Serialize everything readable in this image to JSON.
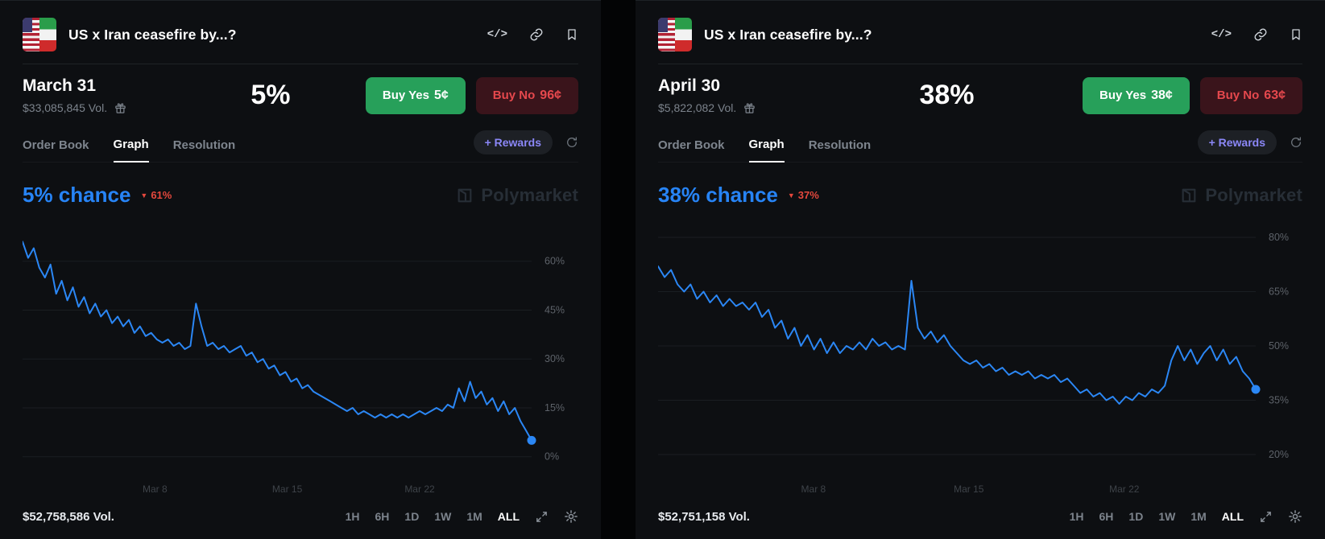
{
  "panels": [
    {
      "title": "US x Iran ceasefire by...?",
      "date": "March 31",
      "volume": "$33,085,845 Vol.",
      "chance": "5%",
      "buy_yes": "Buy Yes",
      "buy_yes_price": "5¢",
      "buy_no": "Buy No",
      "buy_no_price": "96¢",
      "tabs": [
        "Order Book",
        "Graph",
        "Resolution"
      ],
      "rewards": "+ Rewards",
      "chance_label": "5% chance",
      "change": "61%",
      "watermark": "Polymarket",
      "total_volume": "$52,758,586 Vol.",
      "ranges": [
        "1H",
        "6H",
        "1D",
        "1W",
        "1M",
        "ALL"
      ],
      "active_range": "ALL"
    },
    {
      "title": "US x Iran ceasefire by...?",
      "date": "April 30",
      "volume": "$5,822,082 Vol.",
      "chance": "38%",
      "buy_yes": "Buy Yes",
      "buy_yes_price": "38¢",
      "buy_no": "Buy No",
      "buy_no_price": "63¢",
      "tabs": [
        "Order Book",
        "Graph",
        "Resolution"
      ],
      "rewards": "+ Rewards",
      "chance_label": "38% chance",
      "change": "37%",
      "watermark": "Polymarket",
      "total_volume": "$52,751,158 Vol.",
      "ranges": [
        "1H",
        "6H",
        "1D",
        "1W",
        "1M",
        "ALL"
      ],
      "active_range": "ALL"
    }
  ],
  "chart_data": [
    {
      "type": "line",
      "title": "US x Iran ceasefire by March 31 - % chance",
      "color": "#2b87f5",
      "line_color": "#2b87f5",
      "grid": true,
      "legend_position": "none",
      "ylim": [
        -6,
        74
      ],
      "yticks": [
        60,
        45,
        30,
        15,
        0
      ],
      "xticks": [
        {
          "pos": 0.26,
          "label": "Mar 8"
        },
        {
          "pos": 0.52,
          "label": "Mar 15"
        },
        {
          "pos": 0.78,
          "label": "Mar 22"
        }
      ],
      "values": [
        66,
        61,
        64,
        58,
        55,
        59,
        50,
        54,
        48,
        52,
        46,
        49,
        44,
        47,
        43,
        45,
        41,
        43,
        40,
        42,
        38,
        40,
        37,
        38,
        36,
        35,
        36,
        34,
        35,
        33,
        34,
        47,
        40,
        34,
        35,
        33,
        34,
        32,
        33,
        34,
        31,
        32,
        29,
        30,
        27,
        28,
        25,
        26,
        23,
        24,
        21,
        22,
        20,
        19,
        18,
        17,
        16,
        15,
        14,
        15,
        13,
        14,
        13,
        12,
        13,
        12,
        13,
        12,
        13,
        12,
        13,
        14,
        13,
        14,
        15,
        14,
        16,
        15,
        21,
        17,
        23,
        18,
        20,
        16,
        18,
        14,
        17,
        13,
        15,
        11,
        8,
        5
      ]
    },
    {
      "type": "line",
      "title": "US x Iran ceasefire by April 30 - % chance",
      "color": "#2b87f5",
      "line_color": "#2b87f5",
      "grid": true,
      "legend_position": "none",
      "ylim": [
        14,
        86
      ],
      "yticks": [
        80,
        65,
        50,
        35,
        20
      ],
      "xticks": [
        {
          "pos": 0.26,
          "label": "Mar 8"
        },
        {
          "pos": 0.52,
          "label": "Mar 15"
        },
        {
          "pos": 0.78,
          "label": "Mar 22"
        }
      ],
      "values": [
        72,
        69,
        71,
        67,
        65,
        67,
        63,
        65,
        62,
        64,
        61,
        63,
        61,
        62,
        60,
        62,
        58,
        60,
        55,
        57,
        52,
        55,
        50,
        53,
        49,
        52,
        48,
        51,
        48,
        50,
        49,
        51,
        49,
        52,
        50,
        51,
        49,
        50,
        49,
        68,
        55,
        52,
        54,
        51,
        53,
        50,
        48,
        46,
        45,
        46,
        44,
        45,
        43,
        44,
        42,
        43,
        42,
        43,
        41,
        42,
        41,
        42,
        40,
        41,
        39,
        37,
        38,
        36,
        37,
        35,
        36,
        34,
        36,
        35,
        37,
        36,
        38,
        37,
        39,
        46,
        50,
        46,
        49,
        45,
        48,
        50,
        46,
        49,
        45,
        47,
        43,
        41,
        38
      ]
    }
  ]
}
